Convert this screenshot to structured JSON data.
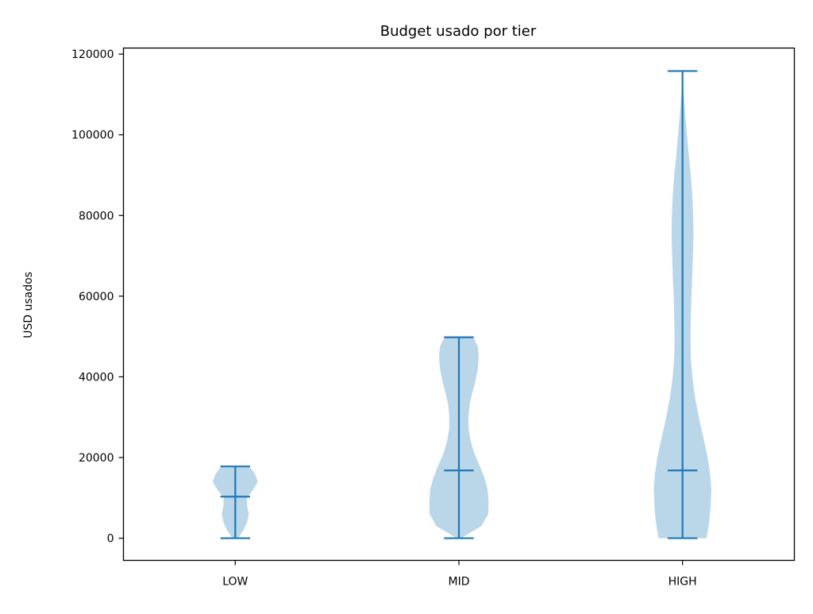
{
  "chart_data": {
    "type": "violin",
    "title": "Budget usado por tier",
    "xlabel": "",
    "ylabel": "USD usados",
    "categories": [
      "LOW",
      "MID",
      "HIGH"
    ],
    "ylim": [
      -5500,
      121500
    ],
    "yticks": [
      0,
      20000,
      40000,
      60000,
      80000,
      100000,
      120000
    ],
    "ytick_labels": [
      "0",
      "20000",
      "40000",
      "60000",
      "80000",
      "100000",
      "120000"
    ],
    "grid": false,
    "legend": "none",
    "colors": {
      "body": "#bad6e9",
      "lines": "#1f77b4",
      "axes": "#000000"
    },
    "violins": [
      {
        "category": "LOW",
        "min": 0,
        "median": 10300,
        "max": 17800,
        "density": [
          [
            0,
            0.09
          ],
          [
            2000,
            0.28
          ],
          [
            4000,
            0.4
          ],
          [
            6000,
            0.46
          ],
          [
            8000,
            0.4
          ],
          [
            10000,
            0.39
          ],
          [
            12000,
            0.6
          ],
          [
            14000,
            0.76
          ],
          [
            16000,
            0.66
          ],
          [
            17800,
            0.47
          ]
        ]
      },
      {
        "category": "MID",
        "min": 0,
        "median": 16800,
        "max": 49800,
        "density": [
          [
            0,
            0.06
          ],
          [
            3000,
            0.76
          ],
          [
            6000,
            0.99
          ],
          [
            9000,
            1.0
          ],
          [
            12000,
            0.97
          ],
          [
            15000,
            0.86
          ],
          [
            18000,
            0.7
          ],
          [
            21000,
            0.52
          ],
          [
            24000,
            0.4
          ],
          [
            27000,
            0.33
          ],
          [
            30000,
            0.32
          ],
          [
            33000,
            0.36
          ],
          [
            36000,
            0.45
          ],
          [
            39000,
            0.56
          ],
          [
            42000,
            0.64
          ],
          [
            45000,
            0.67
          ],
          [
            47500,
            0.64
          ],
          [
            49800,
            0.49
          ]
        ]
      },
      {
        "category": "HIGH",
        "min": 0,
        "median": 16800,
        "max": 115800,
        "density": [
          [
            0,
            0.81
          ],
          [
            4000,
            0.9
          ],
          [
            8000,
            0.95
          ],
          [
            12000,
            0.97
          ],
          [
            16000,
            0.93
          ],
          [
            20000,
            0.85
          ],
          [
            25000,
            0.7
          ],
          [
            30000,
            0.55
          ],
          [
            35000,
            0.42
          ],
          [
            40000,
            0.33
          ],
          [
            45000,
            0.28
          ],
          [
            50000,
            0.27
          ],
          [
            55000,
            0.28
          ],
          [
            60000,
            0.3
          ],
          [
            65000,
            0.33
          ],
          [
            70000,
            0.35
          ],
          [
            75000,
            0.37
          ],
          [
            80000,
            0.36
          ],
          [
            85000,
            0.33
          ],
          [
            90000,
            0.28
          ],
          [
            95000,
            0.21
          ],
          [
            100000,
            0.15
          ],
          [
            105000,
            0.09
          ],
          [
            110000,
            0.04
          ],
          [
            113000,
            0.02
          ],
          [
            115800,
            0.02
          ]
        ]
      }
    ]
  }
}
